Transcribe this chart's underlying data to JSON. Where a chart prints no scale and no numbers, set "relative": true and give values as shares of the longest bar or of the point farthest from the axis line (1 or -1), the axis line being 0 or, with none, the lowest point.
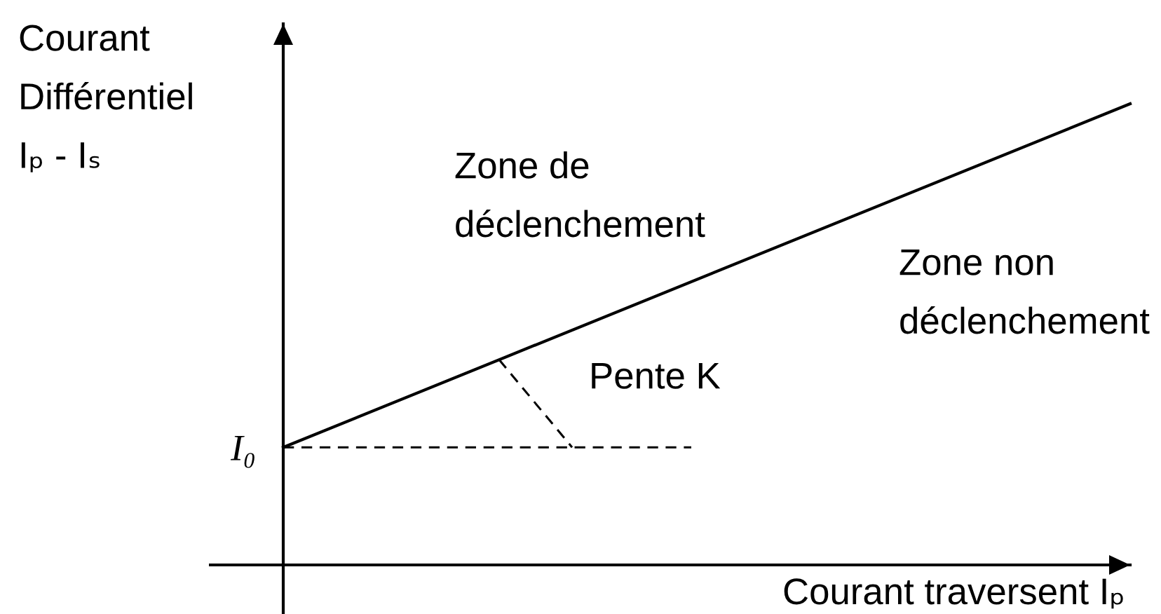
{
  "chart_data": {
    "type": "line",
    "relative": true,
    "ylabel": "Courant\nDifférentiel\nIₚ - Iₛ",
    "xlabel": "Courant traversent Iₚ",
    "categories": [
      null,
      null
    ],
    "values": [
      0.255,
      1
    ],
    "color": "#000000",
    "ref_lines": [
      {
        "axis": "y",
        "value": 0.255,
        "label": "I₀",
        "line_style": "dashed",
        "color": "#000000"
      }
    ],
    "annotations": [
      "Zone de\ndéclenchement",
      "Zone non\ndéclenchement",
      "Pente K"
    ]
  }
}
